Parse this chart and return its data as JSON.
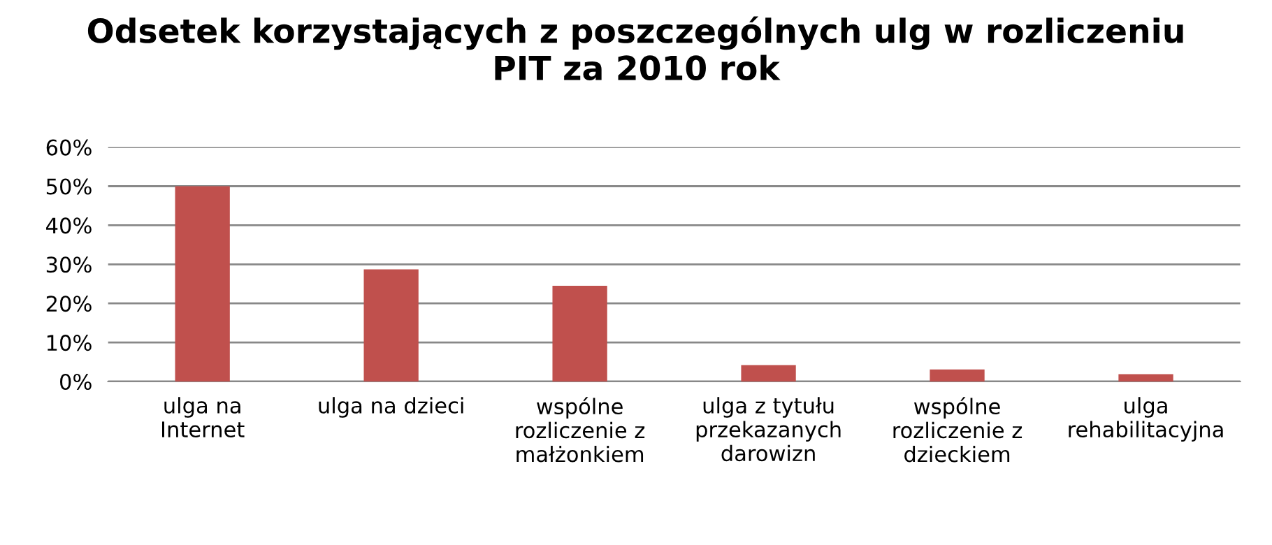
{
  "chart_data": {
    "type": "bar",
    "title": "Odsetek korzystających z poszczególnych ulg w rozliczeniu\nPIT za 2010 rok",
    "categories": [
      "ulga na\nInternet",
      "ulga na dzieci",
      "wspólne\nrozliczenie z\nmałżonkiem",
      "ulga z tytułu\nprzekazanych\ndarowizn",
      "wspólne\nrozliczenie z\ndzieckiem",
      "ulga\nrehabilitacyjna"
    ],
    "values": [
      50,
      28.7,
      24.5,
      4.2,
      3.1,
      1.9
    ],
    "color": "#c0504d",
    "ylim": [
      0,
      60
    ],
    "yticks": [
      {
        "value": 0,
        "label": "0%"
      },
      {
        "value": 10,
        "label": "10%"
      },
      {
        "value": 20,
        "label": "20%"
      },
      {
        "value": 30,
        "label": "30%"
      },
      {
        "value": 40,
        "label": "40%"
      },
      {
        "value": 50,
        "label": "50%"
      },
      {
        "value": 60,
        "label": "60%"
      }
    ],
    "grid": "y"
  }
}
